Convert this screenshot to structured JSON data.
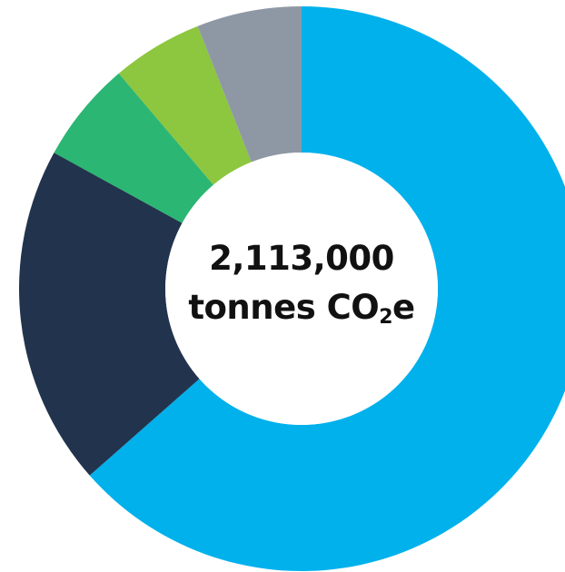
{
  "chart_data": {
    "type": "pie",
    "title": "",
    "center_label": {
      "value": "2,113,000",
      "unit_prefix": "tonnes CO",
      "unit_subscript": "2",
      "unit_suffix": "e"
    },
    "slices": [
      {
        "value": 63.5,
        "color": "#00b1ec"
      },
      {
        "value": 19.5,
        "color": "#22334d"
      },
      {
        "value": 5.8,
        "color": "#2bb673"
      },
      {
        "value": 5.2,
        "color": "#8dc63f"
      },
      {
        "value": 6.0,
        "color": "#8e98a5"
      }
    ],
    "start_angle_deg": 0,
    "direction": "clockwise",
    "donut": true,
    "legend": "none"
  }
}
